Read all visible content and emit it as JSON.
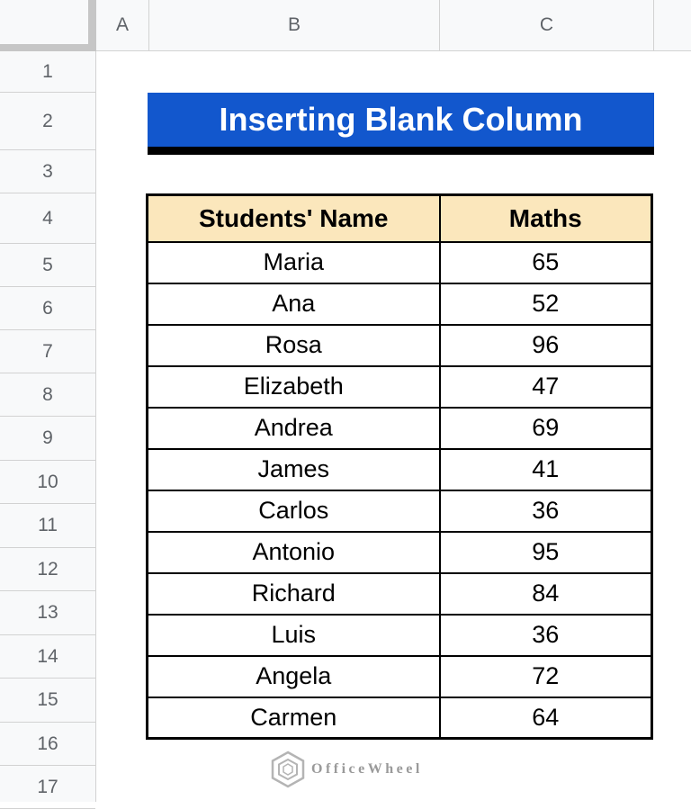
{
  "sheet": {
    "column_headers": [
      "A",
      "B",
      "C",
      ""
    ],
    "row_headers": [
      "1",
      "2",
      "3",
      "4",
      "5",
      "6",
      "7",
      "8",
      "9",
      "10",
      "11",
      "12",
      "13",
      "14",
      "15",
      "16",
      "17"
    ]
  },
  "banner": {
    "title": "Inserting Blank Column"
  },
  "data_table": {
    "columns": [
      "Students' Name",
      "Maths"
    ],
    "rows": [
      {
        "name": "Maria",
        "maths": "65"
      },
      {
        "name": "Ana",
        "maths": "52"
      },
      {
        "name": "Rosa",
        "maths": "96"
      },
      {
        "name": "Elizabeth",
        "maths": "47"
      },
      {
        "name": "Andrea",
        "maths": "69"
      },
      {
        "name": "James",
        "maths": "41"
      },
      {
        "name": "Carlos",
        "maths": "36"
      },
      {
        "name": "Antonio",
        "maths": "95"
      },
      {
        "name": "Richard",
        "maths": "84"
      },
      {
        "name": "Luis",
        "maths": "36"
      },
      {
        "name": "Angela",
        "maths": "72"
      },
      {
        "name": "Carmen",
        "maths": "64"
      }
    ]
  },
  "watermark": {
    "brand": "OfficeWheel",
    "icon": "hexagon-logo-icon"
  },
  "colors": {
    "banner_bg": "#1257cd",
    "banner_underline": "#000000",
    "table_header_bg": "#fbe7bc",
    "table_border": "#000000",
    "chrome_bg": "#f8f9fa",
    "chrome_text": "#5f6368",
    "chrome_border": "#d2d2d2",
    "corner_border": "#c6c6c6",
    "watermark_gray": "#9a9a9a"
  }
}
